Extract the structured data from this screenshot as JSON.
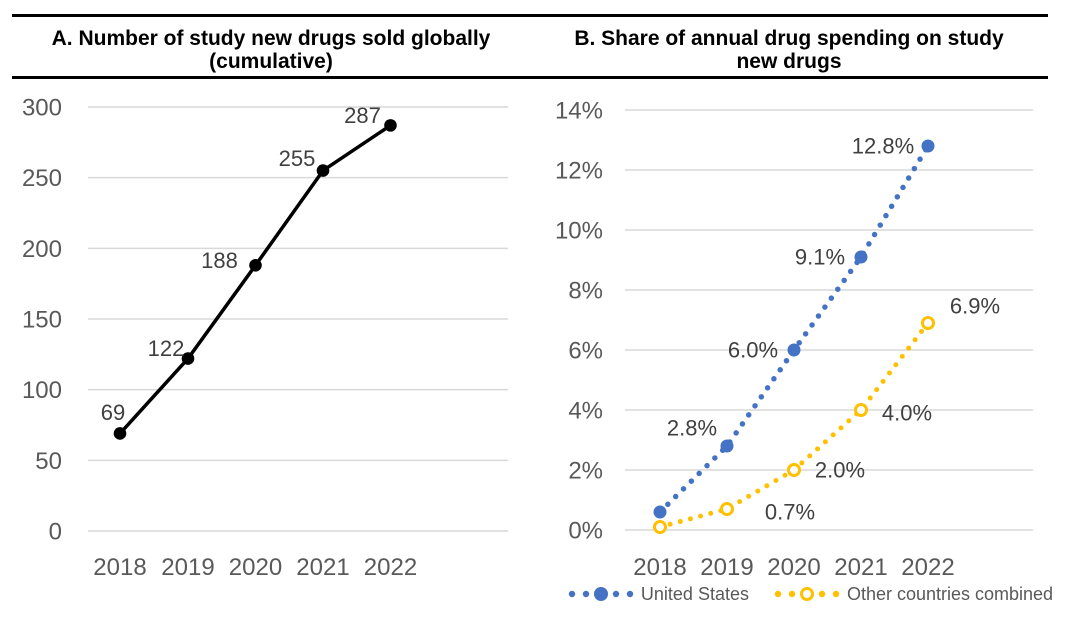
{
  "figure": {
    "panels": [
      {
        "title_line1": "A. Number of study new drugs sold globally",
        "title_line2": "(cumulative)"
      },
      {
        "title_line1": "B. Share of annual drug spending on study",
        "title_line2": "new drugs"
      }
    ]
  },
  "chart_data": [
    {
      "type": "line",
      "title": "A. Number of study new drugs sold globally (cumulative)",
      "categories": [
        "2018",
        "2019",
        "2020",
        "2021",
        "2022"
      ],
      "series": [
        {
          "values": [
            69,
            122,
            188,
            255,
            287
          ],
          "color": "#000000",
          "marker": "filled-circle",
          "line_style": "solid",
          "data_labels": [
            "69",
            "122",
            "188",
            "255",
            "287"
          ]
        }
      ],
      "ylim": [
        0,
        300
      ],
      "ytick_labels": [
        "0",
        "50",
        "100",
        "150",
        "200",
        "250",
        "300"
      ],
      "grid": true,
      "legend": false
    },
    {
      "type": "line",
      "title": "B. Share of annual drug spending on study new drugs",
      "categories": [
        "2018",
        "2019",
        "2020",
        "2021",
        "2022"
      ],
      "series": [
        {
          "name": "United States",
          "values": [
            0.6,
            2.8,
            6.0,
            9.1,
            12.8
          ],
          "unit": "%",
          "color": "#4472C4",
          "marker": "filled-circle",
          "line_style": "dotted",
          "data_labels": [
            "",
            "2.8%",
            "6.0%",
            "9.1%",
            "12.8%"
          ]
        },
        {
          "name": "Other countries combined",
          "values": [
            0.1,
            0.7,
            2.0,
            4.0,
            6.9
          ],
          "unit": "%",
          "color": "#FFC000",
          "marker": "open-circle",
          "line_style": "dotted",
          "data_labels": [
            "",
            "0.7%",
            "2.0%",
            "4.0%",
            "6.9%"
          ]
        }
      ],
      "ylim": [
        0,
        14
      ],
      "ytick_labels": [
        "0%",
        "2%",
        "4%",
        "6%",
        "8%",
        "10%",
        "12%",
        "14%"
      ],
      "grid": true,
      "legend": true,
      "legend_position": "bottom"
    }
  ],
  "colors": {
    "us_series": "#4472C4",
    "other_series": "#FFC000",
    "black_series": "#000000",
    "gridline": "#D9D9D9",
    "axis_text": "#595959",
    "data_label_text": "#404040",
    "title_text": "#000000",
    "rule": "#000000"
  }
}
